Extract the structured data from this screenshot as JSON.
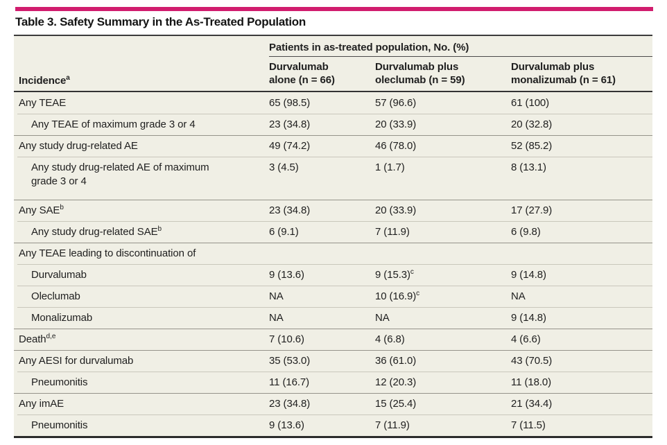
{
  "table": {
    "accent_color": "#d11d6e",
    "title": "Table 3. Safety Summary in the As-Treated Population",
    "spanner": "Patients in as-treated population, No. (%)",
    "row_header": {
      "label": "Incidence",
      "sup": "a"
    },
    "columns": [
      {
        "line1": "Durvalumab",
        "line2": "alone (n = 66)"
      },
      {
        "line1": "Durvalumab plus",
        "line2": "oleclumab (n = 59)"
      },
      {
        "line1": "Durvalumab plus",
        "line2": "monalizumab (n = 61)"
      }
    ],
    "rows": [
      {
        "label": "Any TEAE",
        "sup": "",
        "indent": false,
        "sep": "none",
        "tall": false,
        "values": [
          {
            "text": "65 (98.5)",
            "sup": ""
          },
          {
            "text": "57 (96.6)",
            "sup": ""
          },
          {
            "text": "61 (100)",
            "sup": ""
          }
        ]
      },
      {
        "label": "Any TEAE of maximum grade 3 or 4",
        "sup": "",
        "indent": true,
        "sep": "sub",
        "tall": false,
        "values": [
          {
            "text": "23 (34.8)",
            "sup": ""
          },
          {
            "text": "20 (33.9)",
            "sup": ""
          },
          {
            "text": "20 (32.8)",
            "sup": ""
          }
        ]
      },
      {
        "label": "Any study drug-related AE",
        "sup": "",
        "indent": false,
        "sep": "group",
        "tall": false,
        "values": [
          {
            "text": "49 (74.2)",
            "sup": ""
          },
          {
            "text": "46 (78.0)",
            "sup": ""
          },
          {
            "text": "52 (85.2)",
            "sup": ""
          }
        ]
      },
      {
        "label": "Any study drug-related AE of maximum\ngrade 3 or 4",
        "sup": "",
        "indent": true,
        "sep": "sub",
        "tall": true,
        "values": [
          {
            "text": "3 (4.5)",
            "sup": ""
          },
          {
            "text": "1 (1.7)",
            "sup": ""
          },
          {
            "text": "8 (13.1)",
            "sup": ""
          }
        ]
      },
      {
        "label": "Any SAE",
        "sup": "b",
        "indent": false,
        "sep": "group",
        "tall": false,
        "values": [
          {
            "text": "23 (34.8)",
            "sup": ""
          },
          {
            "text": "20 (33.9)",
            "sup": ""
          },
          {
            "text": "17 (27.9)",
            "sup": ""
          }
        ]
      },
      {
        "label": "Any study drug-related SAE",
        "sup": "b",
        "indent": true,
        "sep": "sub",
        "tall": false,
        "values": [
          {
            "text": "6 (9.1)",
            "sup": ""
          },
          {
            "text": "7 (11.9)",
            "sup": ""
          },
          {
            "text": "6 (9.8)",
            "sup": ""
          }
        ]
      },
      {
        "label": "Any TEAE leading to discontinuation of",
        "sup": "",
        "indent": false,
        "sep": "group",
        "tall": false,
        "values": [
          {
            "text": "",
            "sup": ""
          },
          {
            "text": "",
            "sup": ""
          },
          {
            "text": "",
            "sup": ""
          }
        ]
      },
      {
        "label": "Durvalumab",
        "sup": "",
        "indent": true,
        "sep": "sub",
        "tall": false,
        "values": [
          {
            "text": "9 (13.6)",
            "sup": ""
          },
          {
            "text": "9 (15.3)",
            "sup": "c"
          },
          {
            "text": "9 (14.8)",
            "sup": ""
          }
        ]
      },
      {
        "label": "Oleclumab",
        "sup": "",
        "indent": true,
        "sep": "sub",
        "tall": false,
        "values": [
          {
            "text": "NA",
            "sup": ""
          },
          {
            "text": "10 (16.9)",
            "sup": "c"
          },
          {
            "text": "NA",
            "sup": ""
          }
        ]
      },
      {
        "label": "Monalizumab",
        "sup": "",
        "indent": true,
        "sep": "sub",
        "tall": false,
        "values": [
          {
            "text": "NA",
            "sup": ""
          },
          {
            "text": "NA",
            "sup": ""
          },
          {
            "text": "9 (14.8)",
            "sup": ""
          }
        ]
      },
      {
        "label": "Death",
        "sup": "d,e",
        "indent": false,
        "sep": "group",
        "tall": false,
        "values": [
          {
            "text": "7 (10.6)",
            "sup": ""
          },
          {
            "text": "4 (6.8)",
            "sup": ""
          },
          {
            "text": "4 (6.6)",
            "sup": ""
          }
        ]
      },
      {
        "label": "Any AESI for durvalumab",
        "sup": "",
        "indent": false,
        "sep": "group",
        "tall": false,
        "values": [
          {
            "text": "35 (53.0)",
            "sup": ""
          },
          {
            "text": "36 (61.0)",
            "sup": ""
          },
          {
            "text": "43 (70.5)",
            "sup": ""
          }
        ]
      },
      {
        "label": "Pneumonitis",
        "sup": "",
        "indent": true,
        "sep": "sub",
        "tall": false,
        "values": [
          {
            "text": "11 (16.7)",
            "sup": ""
          },
          {
            "text": "12 (20.3)",
            "sup": ""
          },
          {
            "text": "11 (18.0)",
            "sup": ""
          }
        ]
      },
      {
        "label": "Any imAE",
        "sup": "",
        "indent": false,
        "sep": "group",
        "tall": false,
        "values": [
          {
            "text": "23 (34.8)",
            "sup": ""
          },
          {
            "text": "15 (25.4)",
            "sup": ""
          },
          {
            "text": "21 (34.4)",
            "sup": ""
          }
        ]
      },
      {
        "label": "Pneumonitis",
        "sup": "",
        "indent": true,
        "sep": "sub",
        "tall": false,
        "values": [
          {
            "text": "9 (13.6)",
            "sup": ""
          },
          {
            "text": "7 (11.9)",
            "sup": ""
          },
          {
            "text": "7 (11.5)",
            "sup": ""
          }
        ]
      }
    ]
  }
}
